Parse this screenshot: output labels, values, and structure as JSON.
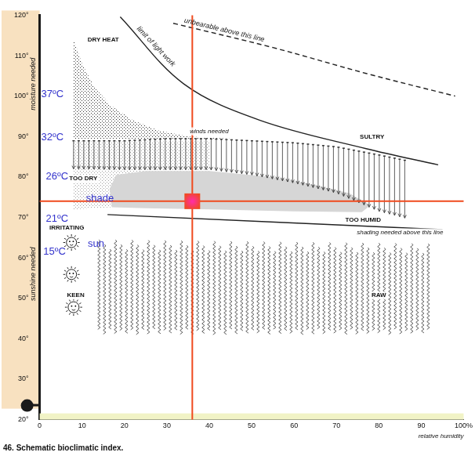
{
  "chart_data": {
    "type": "line",
    "title": "46. Schematic bioclimatic index.",
    "x_label": "relative humidity",
    "xlim": [
      0,
      100
    ],
    "xticks": [
      0,
      10,
      20,
      30,
      40,
      50,
      60,
      70,
      80,
      90,
      {
        "value": 100,
        "label": "100%"
      }
    ],
    "ylim": [
      20,
      120
    ],
    "yticks": [
      {
        "value": 20,
        "label": "20°"
      },
      {
        "value": 30,
        "label": "30°"
      },
      {
        "value": 40,
        "label": "40°"
      },
      {
        "value": 50,
        "label": "50°"
      },
      {
        "value": 60,
        "label": "60°"
      },
      {
        "value": 70,
        "label": "70°"
      },
      {
        "value": 80,
        "label": "80°"
      },
      {
        "value": 90,
        "label": "90°"
      },
      {
        "value": 100,
        "label": "100°"
      },
      {
        "value": 110,
        "label": "110°"
      },
      {
        "value": 120,
        "label": "120°"
      }
    ],
    "grid": false,
    "side_labels": [
      {
        "text": "moisture needed",
        "y": 103
      },
      {
        "text": "sunshine needed",
        "y": 56
      }
    ],
    "series": [
      {
        "type": "area",
        "color": "#d6d6d6",
        "x": [
          17,
          16.5,
          18,
          25,
          40,
          55,
          65,
          73,
          78,
          76,
          60,
          40,
          25
        ],
        "values": [
          72.5,
          77,
          80.5,
          81.5,
          81.5,
          80,
          78,
          76,
          73,
          71.3,
          71.5,
          72,
          72.3
        ]
      },
      {
        "type": "stipple",
        "color": "#a0a0a0",
        "x": [
          8,
          8,
          17,
          16.5,
          18,
          25,
          40,
          40
        ],
        "values": [
          88.8,
          72,
          72.5,
          77,
          80.5,
          81.5,
          81.5,
          88.8
        ]
      },
      {
        "type": "stipple",
        "color": "#333333",
        "x": [
          8,
          10,
          13,
          17,
          22,
          28,
          35,
          48,
          8
        ],
        "values": [
          114,
          108,
          102,
          97.5,
          94,
          91.5,
          90,
          89.3,
          89.3
        ]
      },
      {
        "type": "arrows",
        "color": "#333333",
        "x": [
          8,
          20,
          30,
          40,
          50,
          60,
          70,
          80,
          87
        ],
        "values": [
          89,
          89,
          89.5,
          89.5,
          89,
          88.5,
          87.5,
          85.5,
          84
        ],
        "bottom": [
          82,
          81.8,
          81.8,
          81.8,
          80.5,
          78.5,
          76,
          71.5,
          69.6
        ]
      },
      {
        "type": "zigzag",
        "color": "#333333",
        "x": [
          14,
          92
        ],
        "values": [
          64.5,
          63.5
        ],
        "bottom": [
          41,
          41
        ]
      },
      {
        "type": "line",
        "color": "#222222",
        "line_style": "solid",
        "x": [
          16,
          95
        ],
        "values": [
          70.7,
          67
        ]
      },
      {
        "type": "line",
        "color": "#222222",
        "line_style": "solid",
        "label": "limit of light work",
        "x": [
          19,
          34,
          52,
          77,
          94
        ],
        "values": [
          119.6,
          103,
          94,
          87,
          83
        ]
      },
      {
        "type": "line",
        "color": "#222222",
        "line_style": "dashed",
        "label": "unbearable above this line",
        "x": [
          31.5,
          55,
          77,
          98
        ],
        "values": [
          118,
          112,
          105.6,
          100
        ]
      },
      {
        "type": "point",
        "color": "#f04a1e",
        "marker": "rect",
        "x": [
          36
        ],
        "values": [
          74
        ]
      }
    ],
    "annotations": [
      {
        "text": "DRY HEAT",
        "x": 15,
        "y": 114
      },
      {
        "text": "winds needed",
        "x": 40,
        "y": 91.3
      },
      {
        "text": "SULTRY",
        "x": 78.4,
        "y": 89.8
      },
      {
        "text": "TOO DRY",
        "x": 10.3,
        "y": 79.6
      },
      {
        "text": "TOO HUMID",
        "x": 76.3,
        "y": 69.4
      },
      {
        "text": "shading needed above this line",
        "x": 85,
        "y": 66.3
      },
      {
        "text": "IRRITATING",
        "x": 6.4,
        "y": 67.5
      },
      {
        "text": "KEEN",
        "x": 8.5,
        "y": 50.7
      },
      {
        "text": "RAW",
        "x": 80,
        "y": 50.7
      },
      {
        "text": "37ºC",
        "x": 3,
        "y": 100.4,
        "color": "#3333cc"
      },
      {
        "text": "32ºC",
        "x": 3,
        "y": 89.8,
        "color": "#3333cc"
      },
      {
        "text": "26ºC",
        "x": 4.1,
        "y": 80.1,
        "color": "#3333cc"
      },
      {
        "text": "shade",
        "x": 14.2,
        "y": 74.6,
        "color": "#3333cc"
      },
      {
        "text": "21ºC",
        "x": 4.1,
        "y": 69.7,
        "color": "#3333cc"
      },
      {
        "text": "sun",
        "x": 13.3,
        "y": 63.4,
        "color": "#3333cc"
      },
      {
        "text": "15ºC",
        "x": 3.5,
        "y": 61.5,
        "color": "#3333cc"
      }
    ]
  }
}
